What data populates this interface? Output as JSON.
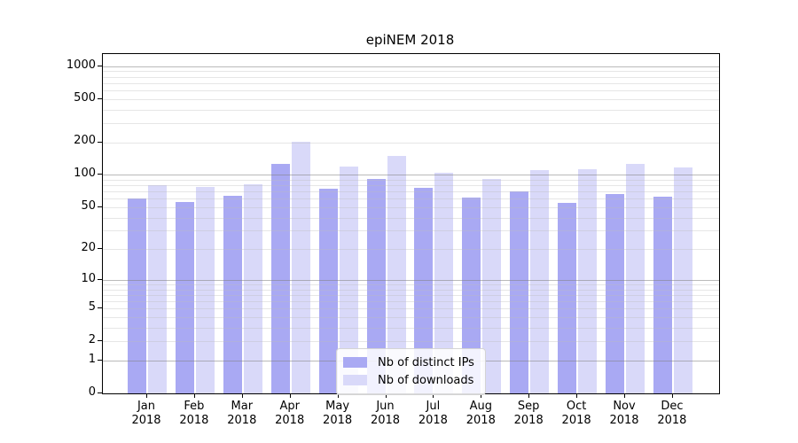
{
  "title": "epiNEM 2018",
  "colors": {
    "ips_bar": "#a9a9f3",
    "downloads_bar": "#d9d9f9",
    "axis": "#000000",
    "grid_major": "#828282",
    "grid_minor": "#bebebe",
    "legend_border": "#d4d4d4",
    "legend_background": "#ffffff"
  },
  "chart_data": {
    "type": "bar",
    "title": "epiNEM 2018",
    "scale": "log1p",
    "grid": "horizontal, log minor + major lines, drawn over bars",
    "legend_position": "bottom-center inside plot",
    "categories": [
      "Jan",
      "Feb",
      "Mar",
      "Apr",
      "May",
      "Jun",
      "Jul",
      "Aug",
      "Sep",
      "Oct",
      "Nov",
      "Dec"
    ],
    "year_label": "2018",
    "series": [
      {
        "name": "Nb of distinct IPs",
        "color": "#a9a9f3",
        "values": [
          60,
          56,
          64,
          125,
          74,
          92,
          76,
          62,
          70,
          55,
          66,
          63
        ]
      },
      {
        "name": "Nb of downloads",
        "color": "#d9d9f9",
        "values": [
          80,
          77,
          82,
          200,
          120,
          150,
          105,
          92,
          111,
          112,
          127,
          118
        ]
      }
    ],
    "yticks": [
      1000,
      500,
      200,
      100,
      50,
      20,
      10,
      5,
      2,
      1,
      0
    ],
    "ylim": [
      0,
      1000
    ],
    "xlabel": "",
    "ylabel": ""
  }
}
